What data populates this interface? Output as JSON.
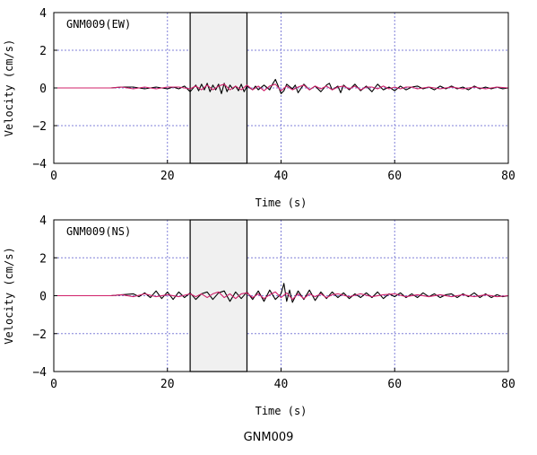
{
  "figure_caption": "GNM009",
  "colors": {
    "grid": "#8080d8",
    "window_fill": "#f0f0f0",
    "trace_black": "#000000",
    "trace_magenta": "#d0206a"
  },
  "chart_data": [
    {
      "type": "line",
      "panel_label": "GNM009(EW)",
      "xlabel": "Time (s)",
      "ylabel": "Velocity (cm/s)",
      "xlim": [
        0,
        80
      ],
      "ylim": [
        -4,
        4
      ],
      "xticks": [
        0,
        20,
        40,
        60,
        80
      ],
      "yticks": [
        -4,
        -2,
        0,
        2,
        4
      ],
      "xtick_labels": [
        "0",
        "20",
        "40",
        "60",
        "80"
      ],
      "ytick_labels": [
        "−4",
        "−2",
        "0",
        "2",
        "4"
      ],
      "grid": true,
      "window": [
        24,
        34
      ],
      "series": [
        {
          "color": "#000000",
          "x": [
            0,
            10,
            12,
            14,
            16,
            18,
            20,
            21,
            22,
            23,
            24,
            25,
            25.5,
            26,
            26.5,
            27,
            27.5,
            28,
            28.5,
            29,
            29.5,
            30,
            30.5,
            31,
            31.5,
            32,
            32.5,
            33,
            33.5,
            34,
            35,
            35.5,
            36,
            37,
            38,
            38.5,
            39,
            39.5,
            40,
            40.5,
            41,
            42,
            42.5,
            43,
            44,
            45,
            46,
            47,
            48,
            48.5,
            49,
            50,
            50.5,
            51,
            52,
            53,
            54,
            55,
            56,
            57,
            58,
            59,
            60,
            61,
            62,
            63,
            64,
            65,
            66,
            67,
            68,
            69,
            70,
            71,
            72,
            73,
            74,
            75,
            76,
            77,
            78,
            79,
            80
          ],
          "y": [
            0,
            0,
            0.05,
            0.05,
            -0.05,
            0.05,
            -0.05,
            0.05,
            -0.05,
            0.1,
            -0.2,
            0.15,
            -0.15,
            0.2,
            -0.1,
            0.25,
            -0.2,
            0.15,
            -0.1,
            0.2,
            -0.3,
            0.25,
            -0.2,
            0.15,
            -0.05,
            0.1,
            -0.15,
            0.2,
            -0.2,
            0.1,
            -0.1,
            0.1,
            -0.1,
            0.15,
            -0.1,
            0.2,
            0.45,
            0.1,
            -0.3,
            -0.15,
            0.2,
            -0.05,
            0.15,
            -0.25,
            0.2,
            -0.1,
            0.1,
            -0.2,
            0.15,
            0.25,
            -0.1,
            0.1,
            -0.25,
            0.15,
            -0.1,
            0.2,
            -0.15,
            0.1,
            -0.2,
            0.2,
            -0.1,
            0.05,
            -0.15,
            0.1,
            -0.1,
            0.05,
            0.1,
            -0.05,
            0.05,
            -0.1,
            0.1,
            -0.05,
            0.1,
            -0.05,
            0.05,
            -0.1,
            0.1,
            -0.05,
            0.05,
            -0.05,
            0.05,
            -0.05,
            0
          ]
        },
        {
          "color": "#d0206a",
          "x": [
            0,
            10,
            12,
            14,
            16,
            18,
            20,
            22,
            24,
            25,
            26,
            27,
            28,
            29,
            30,
            31,
            32,
            33,
            34,
            35,
            36,
            37,
            38,
            39,
            40,
            41,
            42,
            43,
            44,
            45,
            46,
            47,
            48,
            49,
            50,
            51,
            52,
            53,
            54,
            55,
            56,
            57,
            58,
            59,
            60,
            61,
            62,
            63,
            64,
            66,
            68,
            70,
            72,
            74,
            76,
            78,
            80
          ],
          "y": [
            0,
            0,
            0.05,
            -0.05,
            0.05,
            -0.05,
            0.05,
            0.05,
            -0.05,
            0.1,
            -0.1,
            0.15,
            -0.1,
            0.1,
            0.2,
            -0.1,
            0.1,
            -0.1,
            0.15,
            -0.1,
            0.1,
            -0.15,
            0.1,
            0.2,
            -0.15,
            0.1,
            -0.1,
            0.05,
            0.15,
            -0.1,
            0.1,
            -0.05,
            0.1,
            -0.1,
            0.05,
            0.1,
            -0.05,
            0.1,
            -0.1,
            0.05,
            0.05,
            -0.05,
            0.1,
            -0.05,
            0.05,
            -0.05,
            0.05,
            0.05,
            -0.05,
            0.05,
            -0.05,
            0.05,
            -0.05,
            0.05,
            -0.05,
            0.05,
            0
          ]
        }
      ]
    },
    {
      "type": "line",
      "panel_label": "GNM009(NS)",
      "xlabel": "Time (s)",
      "ylabel": "Velocity (cm/s)",
      "xlim": [
        0,
        80
      ],
      "ylim": [
        -4,
        4
      ],
      "xticks": [
        0,
        20,
        40,
        60,
        80
      ],
      "yticks": [
        -4,
        -2,
        0,
        2,
        4
      ],
      "xtick_labels": [
        "0",
        "20",
        "40",
        "60",
        "80"
      ],
      "ytick_labels": [
        "−4",
        "−2",
        "0",
        "2",
        "4"
      ],
      "grid": true,
      "window": [
        24,
        34
      ],
      "series": [
        {
          "color": "#000000",
          "x": [
            0,
            10,
            12,
            14,
            15,
            16,
            17,
            18,
            19,
            20,
            21,
            22,
            23,
            24,
            25,
            26,
            27,
            28,
            29,
            30,
            31,
            32,
            33,
            34,
            35,
            36,
            37,
            38,
            39,
            40,
            40.5,
            41,
            41.5,
            42,
            43,
            44,
            45,
            46,
            47,
            48,
            49,
            50,
            51,
            52,
            53,
            54,
            55,
            56,
            57,
            58,
            59,
            60,
            61,
            62,
            63,
            64,
            65,
            66,
            67,
            68,
            69,
            70,
            71,
            72,
            73,
            74,
            75,
            76,
            77,
            78,
            79,
            80
          ],
          "y": [
            0,
            0,
            0.05,
            0.1,
            -0.05,
            0.15,
            -0.1,
            0.25,
            -0.15,
            0.2,
            -0.2,
            0.2,
            -0.1,
            0.15,
            -0.2,
            0.1,
            0.2,
            -0.2,
            0.15,
            0.25,
            -0.3,
            0.2,
            -0.15,
            0.2,
            -0.2,
            0.25,
            -0.3,
            0.3,
            -0.2,
            0.1,
            0.65,
            -0.3,
            0.3,
            -0.35,
            0.25,
            -0.2,
            0.3,
            -0.25,
            0.2,
            -0.15,
            0.2,
            -0.1,
            0.15,
            -0.15,
            0.1,
            -0.1,
            0.15,
            -0.1,
            0.2,
            -0.15,
            0.1,
            -0.05,
            0.15,
            -0.1,
            0.1,
            -0.1,
            0.15,
            -0.05,
            0.1,
            -0.1,
            0.05,
            0.1,
            -0.1,
            0.1,
            -0.05,
            0.15,
            -0.1,
            0.1,
            -0.1,
            0.05,
            -0.05,
            0
          ]
        },
        {
          "color": "#d0206a",
          "x": [
            0,
            10,
            12,
            14,
            16,
            18,
            20,
            22,
            24,
            25,
            26,
            27,
            28,
            29,
            30,
            31,
            32,
            33,
            34,
            35,
            36,
            37,
            38,
            39,
            40,
            41,
            42,
            43,
            44,
            45,
            46,
            47,
            48,
            49,
            50,
            52,
            54,
            56,
            58,
            60,
            62,
            64,
            66,
            68,
            70,
            72,
            74,
            76,
            78,
            80
          ],
          "y": [
            0,
            0,
            0.05,
            -0.05,
            0.1,
            -0.05,
            0.05,
            -0.05,
            0.1,
            -0.05,
            0.1,
            -0.1,
            0.1,
            0.2,
            -0.1,
            0.1,
            -0.15,
            0.1,
            0.15,
            -0.1,
            0.1,
            -0.15,
            0.05,
            0.2,
            -0.1,
            0.15,
            -0.2,
            0.1,
            -0.15,
            0.1,
            -0.05,
            0.1,
            -0.1,
            0.05,
            0.1,
            -0.05,
            0.1,
            -0.05,
            0.05,
            0.1,
            -0.05,
            0.05,
            -0.05,
            0.05,
            -0.05,
            0.05,
            -0.05,
            0.05,
            -0.05,
            0
          ]
        }
      ]
    }
  ]
}
